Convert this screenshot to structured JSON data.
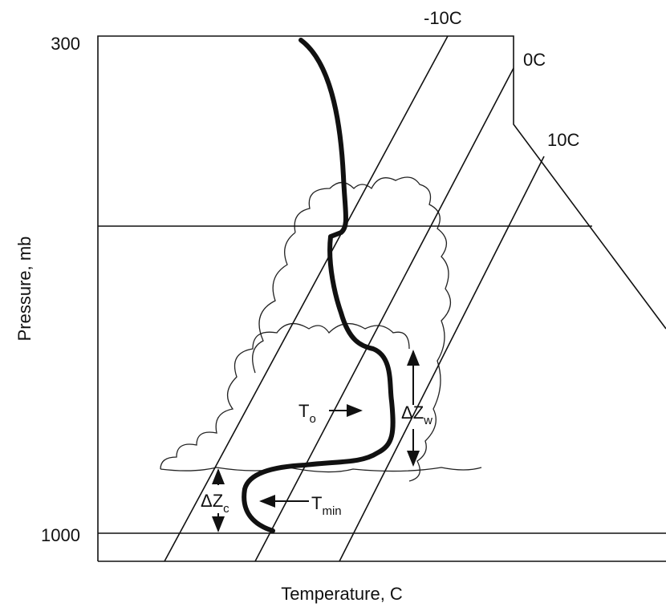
{
  "axis": {
    "y_label": "Pressure, mb",
    "x_label": "Temperature, C",
    "pressure_labels": [
      "300",
      "1000"
    ]
  },
  "isotherms": [
    {
      "label": "-10C"
    },
    {
      "label": "0C"
    },
    {
      "label": "10C"
    }
  ],
  "annotations": [
    {
      "text": "T",
      "sub": "o"
    },
    {
      "text": "ΔZ",
      "sub": "w"
    },
    {
      "text": "T",
      "sub": "min"
    },
    {
      "text": "ΔZ",
      "sub": "c"
    }
  ]
}
